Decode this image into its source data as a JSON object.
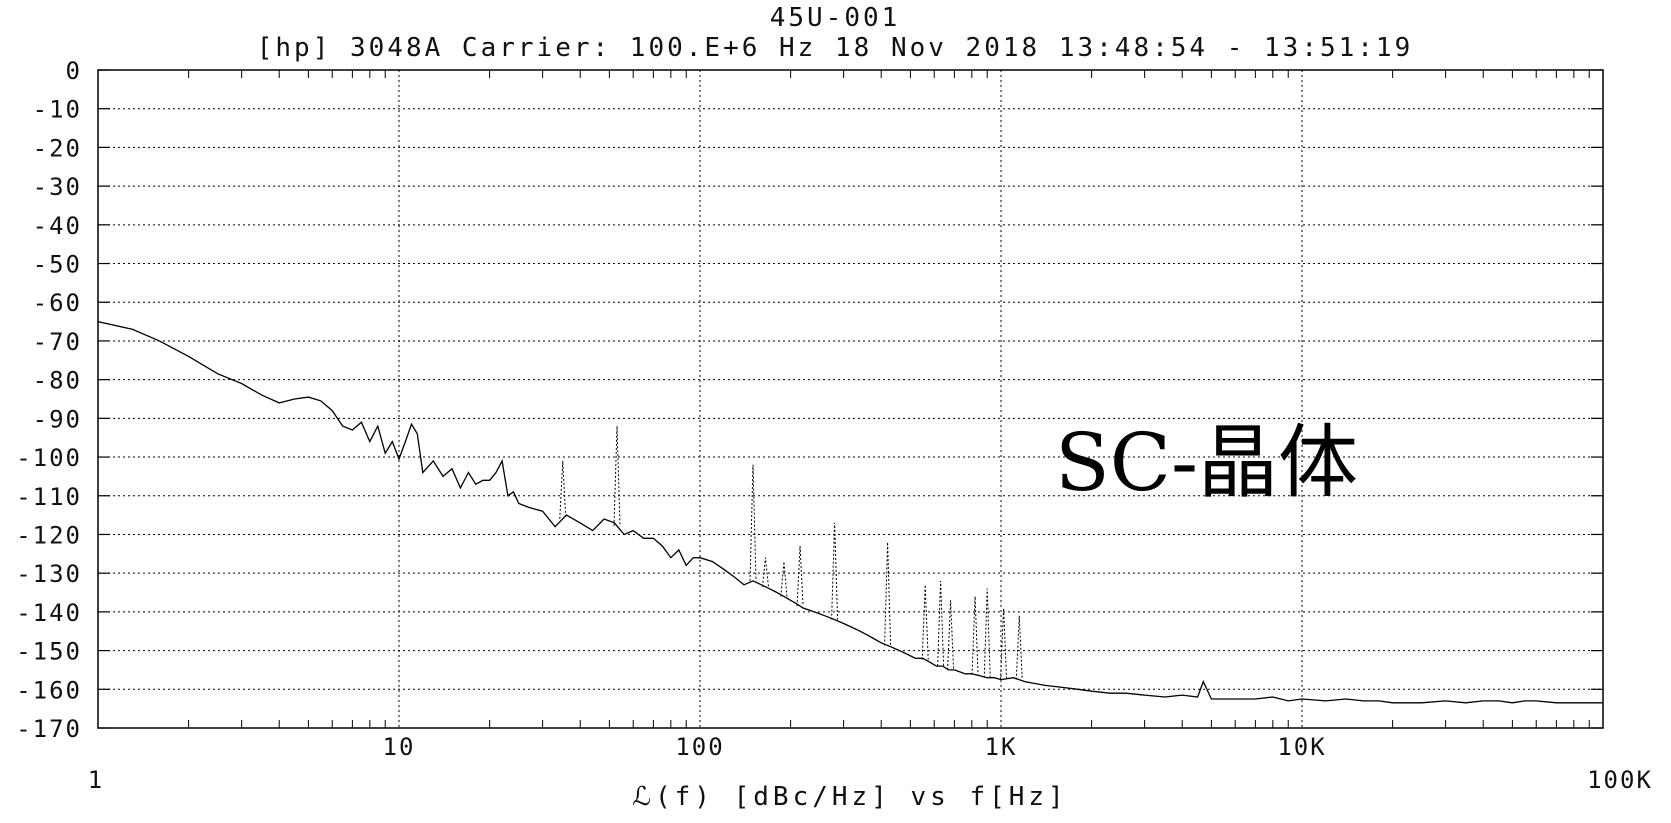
{
  "header": {
    "title": "45U-001",
    "info_line": "[hp] 3048A  Carrier: 100.E+6 Hz    18 Nov 2018  13:48:54 - 13:51:19"
  },
  "annotation": "SC-晶体",
  "axis": {
    "xlabel": "ℒ(f) [dBc/Hz] vs f[Hz]",
    "x_corner_min": "1",
    "x_corner_max": "100K"
  },
  "colors": {
    "trace": "#000000",
    "grid": "#000000",
    "background": "#ffffff"
  },
  "chart_data": {
    "type": "line",
    "title": "45U-001",
    "subtitle": "[hp] 3048A  Carrier: 100.E+6 Hz    18 Nov 2018  13:48:54 - 13:51:19",
    "xlabel": "ℒ(f) [dBc/Hz] vs f[Hz]",
    "ylabel": "",
    "x_scale": "log",
    "xlim": [
      1,
      100000
    ],
    "ylim": [
      -170,
      0
    ],
    "x_ticks": [
      10,
      100,
      1000,
      10000
    ],
    "x_tick_labels": [
      "10",
      "100",
      "1K",
      "10K"
    ],
    "y_ticks": [
      0,
      -10,
      -20,
      -30,
      -40,
      -50,
      -60,
      -70,
      -80,
      -90,
      -100,
      -110,
      -120,
      -130,
      -140,
      -150,
      -160,
      -170
    ],
    "y_tick_labels": [
      "0",
      "-10",
      "-20",
      "-30",
      "-40",
      "-50",
      "-60",
      "-70",
      "-80",
      "-90",
      "-100",
      "-110",
      "-120",
      "-130",
      "-140",
      "-150",
      "-160",
      "-170"
    ],
    "grid": "dotted, major decades and every 10 dB",
    "series": [
      {
        "name": "",
        "style": "solid",
        "x": [
          1,
          1.3,
          1.6,
          2,
          2.5,
          3,
          3.5,
          4,
          4.5,
          5,
          5.5,
          6,
          6.5,
          7,
          7.5,
          8,
          8.5,
          9,
          9.5,
          10,
          10.5,
          11,
          11.5,
          12,
          13,
          14,
          15,
          16,
          17,
          18,
          19,
          20,
          21,
          22,
          23,
          24,
          25,
          27,
          30,
          33,
          36,
          40,
          44,
          48,
          52,
          56,
          60,
          65,
          70,
          75,
          80,
          85,
          90,
          95,
          100,
          110,
          120,
          130,
          140,
          150,
          160,
          170,
          180,
          190,
          200,
          210,
          220,
          240,
          260,
          280,
          300,
          320,
          340,
          360,
          380,
          400,
          430,
          460,
          490,
          520,
          550,
          580,
          610,
          640,
          670,
          700,
          730,
          760,
          800,
          850,
          900,
          950,
          1000,
          1100,
          1200,
          1400,
          1600,
          1800,
          2000,
          2300,
          2600,
          3000,
          3500,
          4000,
          4500,
          4700,
          5000,
          6000,
          7000,
          8000,
          9000,
          10000,
          12000,
          14000,
          16000,
          18000,
          20000,
          25000,
          30000,
          35000,
          40000,
          45000,
          50000,
          55000,
          60000,
          70000,
          80000,
          90000,
          100000
        ],
        "y": [
          -65,
          -67,
          -70,
          -74,
          -78.5,
          -81,
          -84,
          -86,
          -85,
          -84.5,
          -85.5,
          -88,
          -92,
          -93,
          -91,
          -96,
          -92,
          -99,
          -96,
          -100.5,
          -96,
          -91.5,
          -94,
          -104,
          -101,
          -105,
          -103,
          -108,
          -104,
          -107,
          -106,
          -106,
          -104,
          -101,
          -110,
          -109,
          -112,
          -113,
          -114,
          -118,
          -115,
          -117,
          -119,
          -116,
          -117,
          -120,
          -119,
          -121,
          -121,
          -123,
          -126,
          -124,
          -128,
          -126,
          -126,
          -127,
          -129,
          -131,
          -133,
          -132,
          -133,
          -134,
          -135,
          -136,
          -137,
          -138,
          -139,
          -140,
          -141,
          -142,
          -143,
          -144,
          -145,
          -146,
          -147,
          -148,
          -149,
          -150,
          -151,
          -152,
          -152,
          -153,
          -154,
          -154,
          -155,
          -155,
          -155.5,
          -156,
          -156,
          -156.5,
          -157,
          -157,
          -157.5,
          -157,
          -158,
          -159,
          -159.5,
          -160,
          -160.5,
          -161,
          -161,
          -161.5,
          -162,
          -161.5,
          -162,
          -158,
          -162.5,
          -162.5,
          -162.5,
          -162,
          -163,
          -162.5,
          -163,
          -162.5,
          -163,
          -163,
          -163.5,
          -163.5,
          -163,
          -163.5,
          -163,
          -163,
          -163.5,
          -163,
          -163,
          -163.5,
          -163.5,
          -163.5,
          -163.5
        ]
      }
    ],
    "spurs_dotted": [
      {
        "x": 35,
        "y": -101
      },
      {
        "x": 53,
        "y": -92
      },
      {
        "x": 150,
        "y": -102
      },
      {
        "x": 165,
        "y": -126
      },
      {
        "x": 190,
        "y": -127
      },
      {
        "x": 215,
        "y": -123
      },
      {
        "x": 280,
        "y": -117
      },
      {
        "x": 420,
        "y": -122
      },
      {
        "x": 560,
        "y": -133
      },
      {
        "x": 630,
        "y": -132
      },
      {
        "x": 680,
        "y": -137
      },
      {
        "x": 820,
        "y": -136
      },
      {
        "x": 900,
        "y": -134
      },
      {
        "x": 1020,
        "y": -139
      },
      {
        "x": 1150,
        "y": -141
      }
    ]
  }
}
